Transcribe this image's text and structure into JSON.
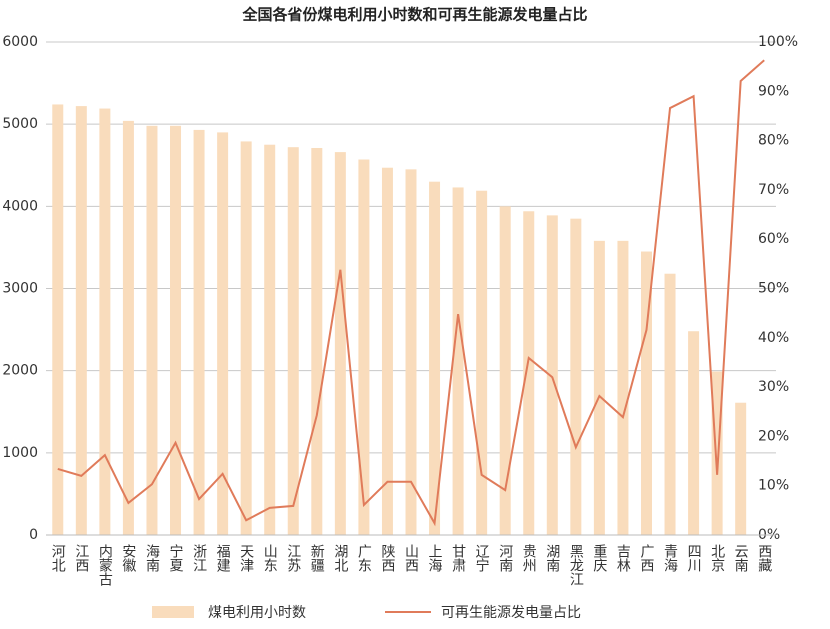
{
  "chart_data": {
    "type": "bar",
    "title": "全国各省份煤电利用小时数和可再生能源发电量占比",
    "categories": [
      "河北",
      "江西",
      "内蒙古",
      "安徽",
      "海南",
      "宁夏",
      "浙江",
      "福建",
      "天津",
      "山东",
      "江苏",
      "新疆",
      "湖北",
      "广东",
      "陕西",
      "山西",
      "上海",
      "甘肃",
      "辽宁",
      "河南",
      "贵州",
      "湖南",
      "黑龙江",
      "重庆",
      "吉林",
      "广西",
      "青海",
      "四川",
      "北京",
      "云南",
      "西藏"
    ],
    "series": [
      {
        "name": "煤电利用小时数",
        "type": "bar",
        "color": "#f9dcbc",
        "values": [
          5240,
          5220,
          5190,
          5040,
          4980,
          4980,
          4930,
          4900,
          4790,
          4750,
          4720,
          4710,
          4660,
          4570,
          4470,
          4450,
          4300,
          4230,
          4190,
          4000,
          3940,
          3890,
          3850,
          3580,
          3580,
          3450,
          3180,
          2480,
          1990,
          1610,
          null
        ]
      },
      {
        "name": "可再生能源发电量占比",
        "type": "line",
        "axis": "y2",
        "color": "#e07b5a",
        "values": [
          13.4,
          12.0,
          16.2,
          6.5,
          10.3,
          18.7,
          7.3,
          12.4,
          3.0,
          5.5,
          5.9,
          24.3,
          53.8,
          6.1,
          10.8,
          10.8,
          2.4,
          44.8,
          12.2,
          9.1,
          35.9,
          32.0,
          17.8,
          28.2,
          23.9,
          41.6,
          86.6,
          89.0,
          12.2,
          92.1,
          96.3
        ]
      }
    ],
    "ylim": [
      0,
      6000
    ],
    "yticks": [
      0,
      1000,
      2000,
      3000,
      4000,
      5000,
      6000
    ],
    "y2lim": [
      0,
      100
    ],
    "y2ticks": [
      {
        "value": 0,
        "label": "0%"
      },
      {
        "value": 10,
        "label": "10%"
      },
      {
        "value": 20,
        "label": "20%"
      },
      {
        "value": 30,
        "label": "30%"
      },
      {
        "value": 40,
        "label": "40%"
      },
      {
        "value": 50,
        "label": "50%"
      },
      {
        "value": 60,
        "label": "60%"
      },
      {
        "value": 70,
        "label": "70%"
      },
      {
        "value": 80,
        "label": "80%"
      },
      {
        "value": 90,
        "label": "90%"
      },
      {
        "value": 100,
        "label": "100%"
      }
    ],
    "grid": true,
    "legend": "bottom"
  }
}
